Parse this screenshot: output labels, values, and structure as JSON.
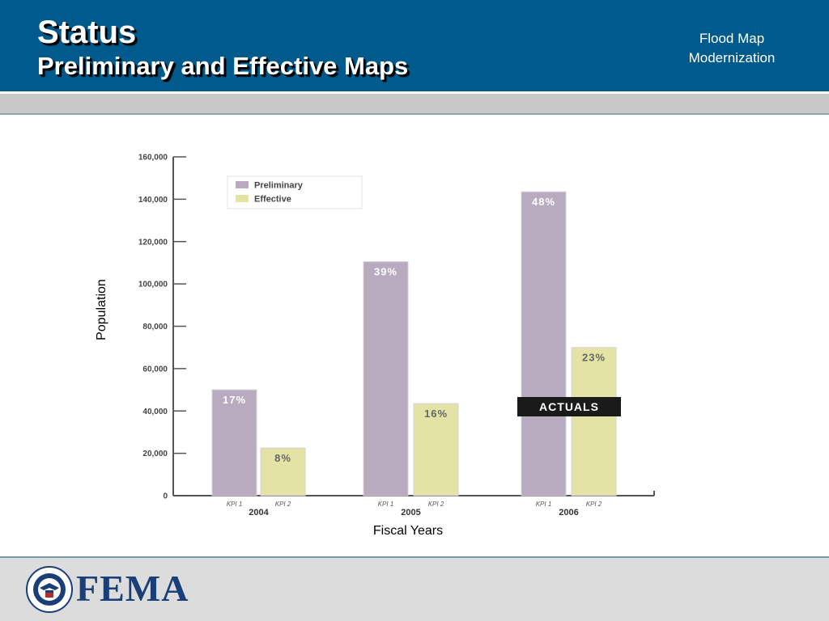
{
  "header": {
    "title": "Status",
    "subtitle": "Preliminary and Effective Maps",
    "brand_line1": "Flood Map",
    "brand_line2": "Modernization"
  },
  "footer": {
    "logo_text": "FEMA",
    "seal_icon": "dhs-seal-icon"
  },
  "colors": {
    "header_bg": "#005a8c",
    "preliminary": "#b8abbf",
    "effective": "#e3e3a6",
    "annotation_bg": "#1a1a1a"
  },
  "chart_data": {
    "type": "bar",
    "xlabel": "Fiscal Years",
    "ylabel": "Population",
    "ylim": [
      0,
      160000
    ],
    "yticks": [
      {
        "value": 0,
        "label": "0"
      },
      {
        "value": 20000,
        "label": "20,000"
      },
      {
        "value": 40000,
        "label": "40,000"
      },
      {
        "value": 60000,
        "label": "60,000"
      },
      {
        "value": 80000,
        "label": "80,000"
      },
      {
        "value": 100000,
        "label": "100,000"
      },
      {
        "value": 120000,
        "label": "120,000"
      },
      {
        "value": 140000,
        "label": "140,000"
      },
      {
        "value": 160000,
        "label": "160,000"
      }
    ],
    "categories": [
      "2004",
      "2005",
      "2006"
    ],
    "series": [
      {
        "name": "Preliminary",
        "sublabel": "KPI 1",
        "color": "#b8abbf",
        "values": [
          50000,
          110500,
          143500
        ],
        "labels": [
          "17%",
          "39%",
          "48%"
        ]
      },
      {
        "name": "Effective",
        "sublabel": "KPI 2",
        "color": "#e3e3a6",
        "values": [
          22500,
          43500,
          70000
        ],
        "labels": [
          "8%",
          "16%",
          "23%"
        ]
      }
    ],
    "legend": {
      "position": "top-left",
      "entries": [
        "Preliminary",
        "Effective"
      ]
    },
    "annotation": {
      "text": "ACTUALS",
      "category": "2006"
    },
    "grid": false
  }
}
